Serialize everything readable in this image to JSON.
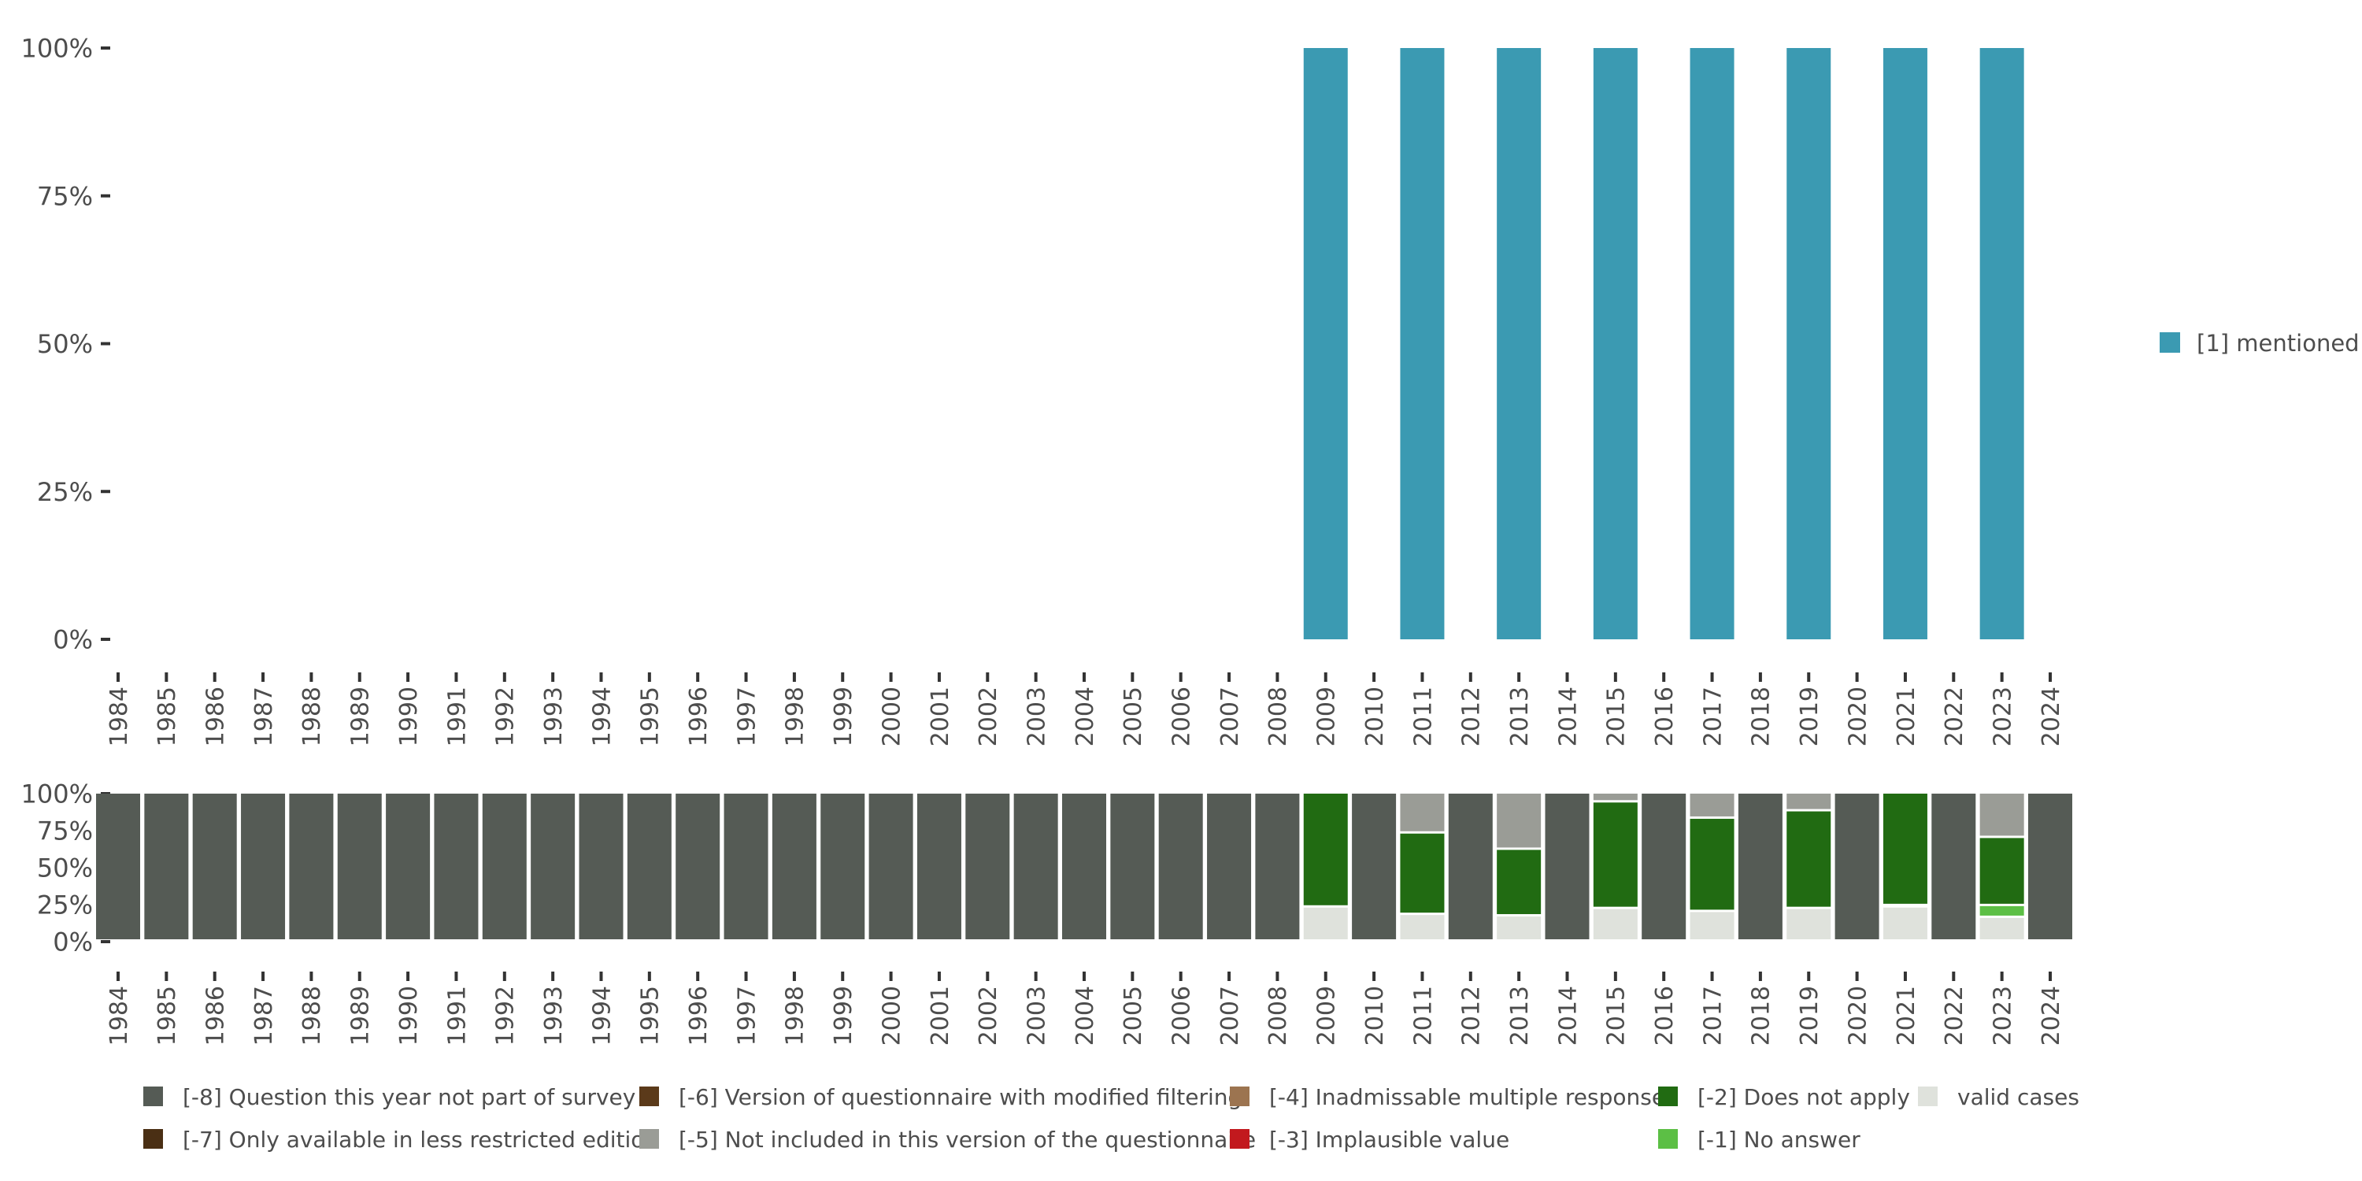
{
  "chart_data": [
    {
      "type": "bar",
      "stacked": true,
      "categories": [
        "1984",
        "1985",
        "1986",
        "1987",
        "1988",
        "1989",
        "1990",
        "1991",
        "1992",
        "1993",
        "1994",
        "1995",
        "1996",
        "1997",
        "1998",
        "1999",
        "2000",
        "2001",
        "2002",
        "2003",
        "2004",
        "2005",
        "2006",
        "2007",
        "2008",
        "2009",
        "2010",
        "2011",
        "2012",
        "2013",
        "2014",
        "2015",
        "2016",
        "2017",
        "2018",
        "2019",
        "2020",
        "2021",
        "2022",
        "2023",
        "2024"
      ],
      "y_tick_labels": [
        "0%",
        "25%",
        "50%",
        "75%",
        "100%"
      ],
      "ylim": [
        0,
        100
      ],
      "series": [
        {
          "name": "[1] mentioned",
          "color": "#3b9ab2",
          "values": [
            null,
            null,
            null,
            null,
            null,
            null,
            null,
            null,
            null,
            null,
            null,
            null,
            null,
            null,
            null,
            null,
            null,
            null,
            null,
            null,
            null,
            null,
            null,
            null,
            null,
            100,
            null,
            100,
            null,
            100,
            null,
            100,
            null,
            100,
            null,
            100,
            null,
            100,
            null,
            100,
            null
          ]
        }
      ],
      "legend_position": "right"
    },
    {
      "type": "bar",
      "stacked": true,
      "categories": [
        "1984",
        "1985",
        "1986",
        "1987",
        "1988",
        "1989",
        "1990",
        "1991",
        "1992",
        "1993",
        "1994",
        "1995",
        "1996",
        "1997",
        "1998",
        "1999",
        "2000",
        "2001",
        "2002",
        "2003",
        "2004",
        "2005",
        "2006",
        "2007",
        "2008",
        "2009",
        "2010",
        "2011",
        "2012",
        "2013",
        "2014",
        "2015",
        "2016",
        "2017",
        "2018",
        "2019",
        "2020",
        "2021",
        "2022",
        "2023",
        "2024"
      ],
      "y_tick_labels": [
        "0%",
        "25%",
        "50%",
        "75%",
        "100%"
      ],
      "ylim": [
        0,
        100
      ],
      "series": [
        {
          "name": "valid cases",
          "color": "#dfe2dc",
          "values": [
            0,
            0,
            0,
            0,
            0,
            0,
            0,
            0,
            0,
            0,
            0,
            0,
            0,
            0,
            0,
            0,
            0,
            0,
            0,
            0,
            0,
            0,
            0,
            0,
            0,
            23,
            0,
            18,
            0,
            17,
            0,
            22,
            0,
            20,
            0,
            22,
            0,
            23,
            0,
            16,
            0
          ]
        },
        {
          "name": "[-1] No answer",
          "color": "#5cbf45",
          "values": [
            0,
            0,
            0,
            0,
            0,
            0,
            0,
            0,
            0,
            0,
            0,
            0,
            0,
            0,
            0,
            0,
            0,
            0,
            0,
            0,
            0,
            0,
            0,
            0,
            0,
            0,
            0,
            0,
            0,
            0,
            0,
            0,
            0,
            0,
            0,
            0,
            0,
            1,
            0,
            8,
            0
          ]
        },
        {
          "name": "[-2] Does not apply",
          "color": "#216b12",
          "values": [
            0,
            0,
            0,
            0,
            0,
            0,
            0,
            0,
            0,
            0,
            0,
            0,
            0,
            0,
            0,
            0,
            0,
            0,
            0,
            0,
            0,
            0,
            0,
            0,
            0,
            77,
            0,
            55,
            0,
            45,
            0,
            72,
            0,
            63,
            0,
            66,
            0,
            76,
            0,
            46,
            0
          ]
        },
        {
          "name": "[-3] Implausible value",
          "color": "#c2191e",
          "values": [
            0,
            0,
            0,
            0,
            0,
            0,
            0,
            0,
            0,
            0,
            0,
            0,
            0,
            0,
            0,
            0,
            0,
            0,
            0,
            0,
            0,
            0,
            0,
            0,
            0,
            0,
            0,
            0,
            0,
            0,
            0,
            0,
            0,
            0,
            0,
            0,
            0,
            0,
            0,
            0,
            0
          ]
        },
        {
          "name": "[-4] Inadmissable multiple response",
          "color": "#9c7450",
          "values": [
            0,
            0,
            0,
            0,
            0,
            0,
            0,
            0,
            0,
            0,
            0,
            0,
            0,
            0,
            0,
            0,
            0,
            0,
            0,
            0,
            0,
            0,
            0,
            0,
            0,
            0,
            0,
            0,
            0,
            0,
            0,
            0,
            0,
            0,
            0,
            0,
            0,
            0,
            0,
            0,
            0
          ]
        },
        {
          "name": "[-5] Not included in this version of the questionnaire",
          "color": "#9a9c96",
          "values": [
            0,
            0,
            0,
            0,
            0,
            0,
            0,
            0,
            0,
            0,
            0,
            0,
            0,
            0,
            0,
            0,
            0,
            0,
            0,
            0,
            0,
            0,
            0,
            0,
            0,
            0,
            0,
            27,
            0,
            38,
            0,
            6,
            0,
            17,
            0,
            12,
            0,
            0,
            0,
            30,
            0
          ]
        },
        {
          "name": "[-6] Version of questionnaire with modified filtering",
          "color": "#5b3a1a",
          "values": [
            0,
            0,
            0,
            0,
            0,
            0,
            0,
            0,
            0,
            0,
            0,
            0,
            0,
            0,
            0,
            0,
            0,
            0,
            0,
            0,
            0,
            0,
            0,
            0,
            0,
            0,
            0,
            0,
            0,
            0,
            0,
            0,
            0,
            0,
            0,
            0,
            0,
            0,
            0,
            0,
            0
          ]
        },
        {
          "name": "[-7] Only available in less restricted edition",
          "color": "#4a2f14",
          "values": [
            0,
            0,
            0,
            0,
            0,
            0,
            0,
            0,
            0,
            0,
            0,
            0,
            0,
            0,
            0,
            0,
            0,
            0,
            0,
            0,
            0,
            0,
            0,
            0,
            0,
            0,
            0,
            0,
            0,
            0,
            0,
            0,
            0,
            0,
            0,
            0,
            0,
            0,
            0,
            0,
            0
          ]
        },
        {
          "name": "[-8] Question this year not part of survey",
          "color": "#555b55",
          "values": [
            100,
            100,
            100,
            100,
            100,
            100,
            100,
            100,
            100,
            100,
            100,
            100,
            100,
            100,
            100,
            100,
            100,
            100,
            100,
            100,
            100,
            100,
            100,
            100,
            100,
            0,
            100,
            0,
            100,
            0,
            100,
            0,
            100,
            0,
            100,
            0,
            100,
            0,
            100,
            0,
            100
          ]
        }
      ],
      "legend_position": "bottom"
    }
  ],
  "legend_bottom": [
    {
      "label": "[-8] Question this year not part of survey",
      "color": "#555b55"
    },
    {
      "label": "[-7] Only available in less restricted edition",
      "color": "#4a2f14"
    },
    {
      "label": "[-6] Version of questionnaire with modified filtering",
      "color": "#5b3a1a"
    },
    {
      "label": "[-5] Not included in this version of the questionnaire",
      "color": "#9a9c96"
    },
    {
      "label": "[-4] Inadmissable multiple response",
      "color": "#9c7450"
    },
    {
      "label": "[-3] Implausible value",
      "color": "#c2191e"
    },
    {
      "label": "[-2] Does not apply",
      "color": "#216b12"
    },
    {
      "label": "[-1] No answer",
      "color": "#5cbf45"
    },
    {
      "label": "valid cases",
      "color": "#dfe2dc"
    }
  ]
}
